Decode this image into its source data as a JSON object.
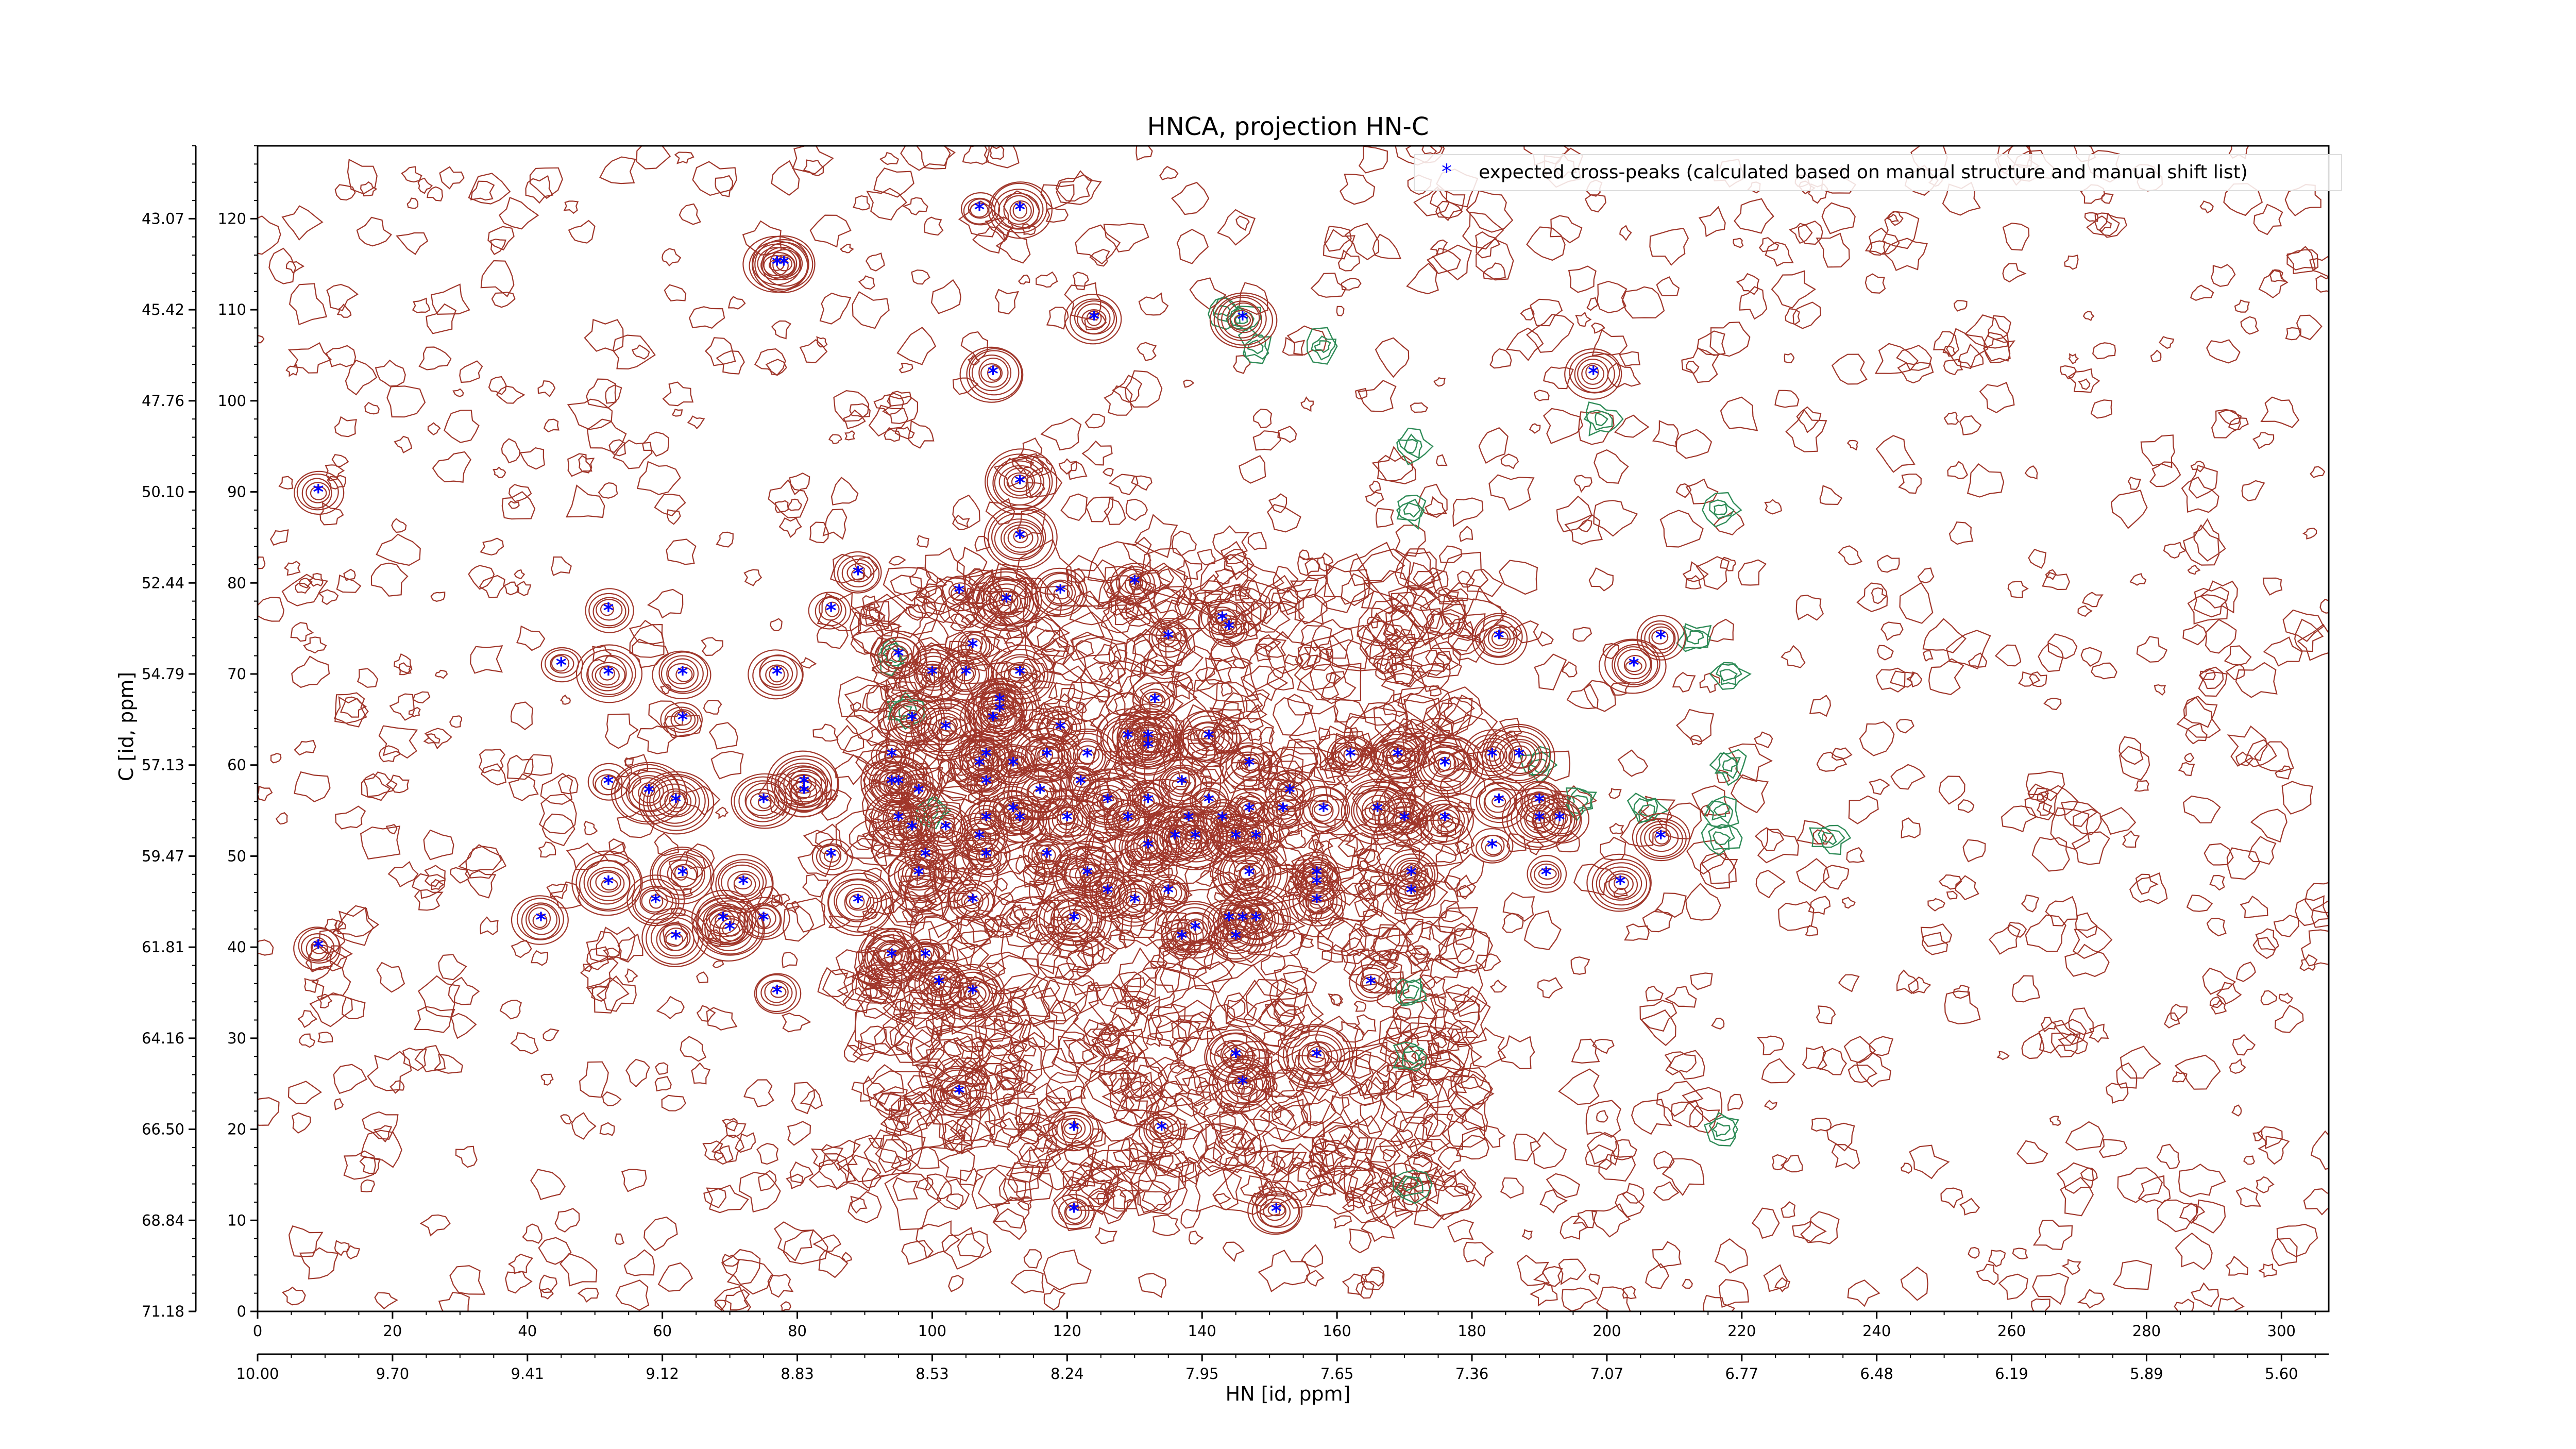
{
  "chart_data": {
    "type": "scatter",
    "title": "HNCA, projection HN-C",
    "xlabel": "HN [id, ppm]",
    "ylabel": "C [id, ppm]",
    "x_index_ticks": [
      "0",
      "20",
      "40",
      "60",
      "80",
      "100",
      "120",
      "140",
      "160",
      "180",
      "200",
      "220",
      "240",
      "260",
      "280",
      "300"
    ],
    "x_index_range": [
      0,
      307
    ],
    "x_ppm_ticks": [
      "10.00",
      "9.70",
      "9.41",
      "9.12",
      "8.83",
      "8.53",
      "8.24",
      "7.95",
      "7.65",
      "7.36",
      "7.07",
      "6.77",
      "6.48",
      "6.19",
      "5.89",
      "5.60"
    ],
    "y_index_ticks": [
      "0",
      "10",
      "20",
      "30",
      "40",
      "50",
      "60",
      "70",
      "80",
      "90",
      "100",
      "110",
      "120"
    ],
    "y_index_range": [
      0,
      128
    ],
    "y_ppm_ticks": [
      "71.18",
      "68.84",
      "66.50",
      "64.16",
      "61.81",
      "59.47",
      "57.13",
      "54.79",
      "52.44",
      "50.10",
      "47.76",
      "45.42",
      "43.07"
    ],
    "legend": {
      "label": "expected cross-peaks (calculated based on manual structure and manual shift list)",
      "position": "top-right"
    },
    "colors": {
      "positive_contour": "#a0362a",
      "negative_contour": "#2e8b57",
      "peaks": "#0000ff"
    },
    "series": [
      {
        "name": "expected cross-peaks (calculated based on manual structure and manual shift list)",
        "points": [
          [
            9,
            90
          ],
          [
            9,
            40
          ],
          [
            107,
            121
          ],
          [
            113,
            121
          ],
          [
            77,
            115
          ],
          [
            78,
            115
          ],
          [
            124,
            109
          ],
          [
            146,
            109
          ],
          [
            109,
            103
          ],
          [
            198,
            103
          ],
          [
            113,
            91
          ],
          [
            113,
            85
          ],
          [
            89,
            81
          ],
          [
            130,
            80
          ],
          [
            104,
            79
          ],
          [
            119,
            79
          ],
          [
            111,
            78
          ],
          [
            85,
            77
          ],
          [
            52,
            77
          ],
          [
            143,
            76
          ],
          [
            144,
            75
          ],
          [
            135,
            74
          ],
          [
            184,
            74
          ],
          [
            208,
            74
          ],
          [
            106,
            73
          ],
          [
            45,
            71
          ],
          [
            52,
            70
          ],
          [
            63,
            70
          ],
          [
            77,
            70
          ],
          [
            95,
            72
          ],
          [
            100,
            70
          ],
          [
            105,
            70
          ],
          [
            113,
            70
          ],
          [
            204,
            71
          ],
          [
            133,
            67
          ],
          [
            110,
            67
          ],
          [
            110,
            66
          ],
          [
            63,
            65
          ],
          [
            97,
            65
          ],
          [
            102,
            64
          ],
          [
            109,
            65
          ],
          [
            119,
            64
          ],
          [
            129,
            63
          ],
          [
            132,
            63
          ],
          [
            141,
            63
          ],
          [
            132,
            62
          ],
          [
            123,
            61
          ],
          [
            108,
            61
          ],
          [
            107,
            60
          ],
          [
            94,
            61
          ],
          [
            117,
            61
          ],
          [
            112,
            60
          ],
          [
            147,
            60
          ],
          [
            162,
            61
          ],
          [
            169,
            61
          ],
          [
            176,
            60
          ],
          [
            183,
            61
          ],
          [
            187,
            61
          ],
          [
            52,
            58
          ],
          [
            58,
            57
          ],
          [
            62,
            56
          ],
          [
            75,
            56
          ],
          [
            81,
            58
          ],
          [
            81,
            57
          ],
          [
            94,
            58
          ],
          [
            95,
            58
          ],
          [
            98,
            57
          ],
          [
            108,
            58
          ],
          [
            116,
            57
          ],
          [
            122,
            58
          ],
          [
            137,
            58
          ],
          [
            112,
            55
          ],
          [
            126,
            56
          ],
          [
            132,
            56
          ],
          [
            141,
            56
          ],
          [
            153,
            57
          ],
          [
            166,
            55
          ],
          [
            170,
            54
          ],
          [
            176,
            54
          ],
          [
            184,
            56
          ],
          [
            190,
            56
          ],
          [
            190,
            54
          ],
          [
            193,
            54
          ],
          [
            95,
            54
          ],
          [
            97,
            53
          ],
          [
            102,
            53
          ],
          [
            108,
            54
          ],
          [
            113,
            54
          ],
          [
            120,
            54
          ],
          [
            129,
            54
          ],
          [
            138,
            54
          ],
          [
            139,
            52
          ],
          [
            143,
            54
          ],
          [
            147,
            55
          ],
          [
            152,
            55
          ],
          [
            158,
            55
          ],
          [
            107,
            52
          ],
          [
            132,
            51
          ],
          [
            136,
            52
          ],
          [
            145,
            52
          ],
          [
            148,
            52
          ],
          [
            208,
            52
          ],
          [
            85,
            50
          ],
          [
            99,
            50
          ],
          [
            108,
            50
          ],
          [
            117,
            50
          ],
          [
            123,
            48
          ],
          [
            147,
            48
          ],
          [
            157,
            48
          ],
          [
            183,
            51
          ],
          [
            191,
            48
          ],
          [
            52,
            47
          ],
          [
            63,
            48
          ],
          [
            72,
            47
          ],
          [
            98,
            48
          ],
          [
            106,
            45
          ],
          [
            126,
            46
          ],
          [
            130,
            45
          ],
          [
            135,
            46
          ],
          [
            157,
            47
          ],
          [
            157,
            45
          ],
          [
            171,
            48
          ],
          [
            171,
            46
          ],
          [
            202,
            47
          ],
          [
            42,
            43
          ],
          [
            59,
            45
          ],
          [
            69,
            43
          ],
          [
            75,
            43
          ],
          [
            89,
            45
          ],
          [
            121,
            43
          ],
          [
            139,
            42
          ],
          [
            144,
            43
          ],
          [
            146,
            43
          ],
          [
            148,
            43
          ],
          [
            62,
            41
          ],
          [
            70,
            42
          ],
          [
            137,
            41
          ],
          [
            145,
            41
          ],
          [
            94,
            39
          ],
          [
            99,
            39
          ],
          [
            101,
            36
          ],
          [
            106,
            35
          ],
          [
            77,
            35
          ],
          [
            165,
            36
          ],
          [
            145,
            28
          ],
          [
            157,
            28
          ],
          [
            146,
            25
          ],
          [
            104,
            24
          ],
          [
            134,
            20
          ],
          [
            121,
            20
          ],
          [
            121,
            11
          ],
          [
            151,
            11
          ]
        ]
      }
    ]
  }
}
